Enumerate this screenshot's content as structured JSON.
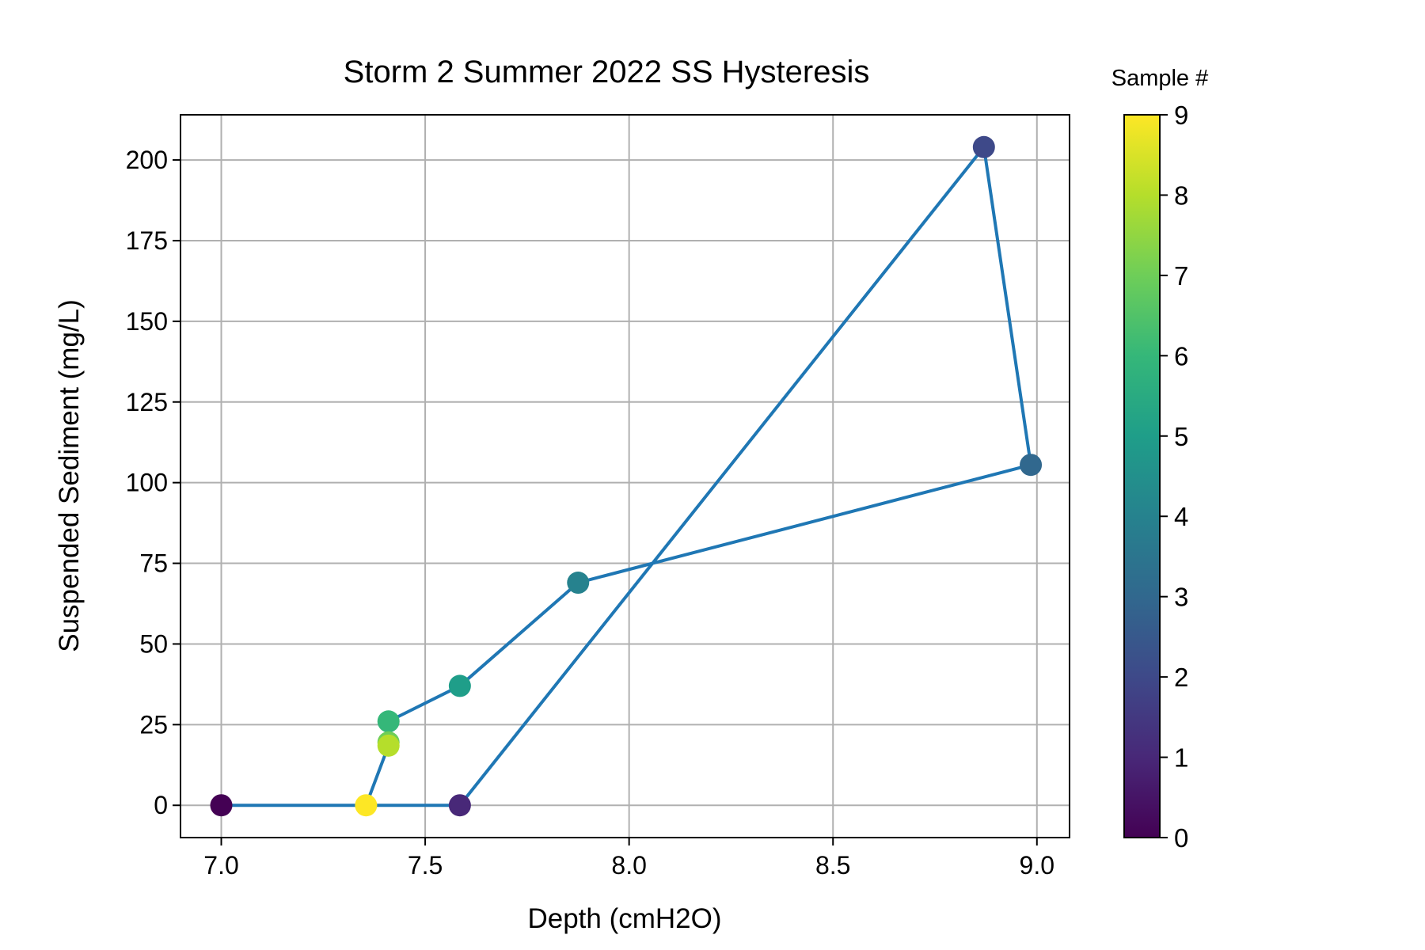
{
  "chart_data": {
    "type": "scatter",
    "title": "Storm 2 Summer 2022 SS Hysteresis",
    "xlabel": "Depth (cmH2O)",
    "ylabel": "Suspended Sediment (mg/L)",
    "xlim": [
      6.9,
      9.08
    ],
    "ylim": [
      -10,
      214
    ],
    "xticks": [
      7.0,
      7.5,
      8.0,
      8.5,
      9.0
    ],
    "xtick_labels": [
      "7.0",
      "7.5",
      "8.0",
      "8.5",
      "9.0"
    ],
    "yticks": [
      0,
      25,
      50,
      75,
      100,
      125,
      150,
      175,
      200
    ],
    "ytick_labels": [
      "0",
      "25",
      "50",
      "75",
      "100",
      "125",
      "150",
      "175",
      "200"
    ],
    "grid": true,
    "line_color": "#1f77b4",
    "colormap": "viridis",
    "colorbar": {
      "label": "Sample #",
      "range": [
        0,
        9
      ],
      "ticks": [
        0,
        1,
        2,
        3,
        4,
        5,
        6,
        7,
        8,
        9
      ],
      "tick_labels": [
        "0",
        "1",
        "2",
        "3",
        "4",
        "5",
        "6",
        "7",
        "8",
        "9"
      ]
    },
    "points": [
      {
        "sample": 0,
        "x": 7.0,
        "y": 0
      },
      {
        "sample": 1,
        "x": 7.585,
        "y": 0
      },
      {
        "sample": 2,
        "x": 8.87,
        "y": 204
      },
      {
        "sample": 3,
        "x": 8.985,
        "y": 105.5
      },
      {
        "sample": 4,
        "x": 7.875,
        "y": 69
      },
      {
        "sample": 5,
        "x": 7.585,
        "y": 37
      },
      {
        "sample": 6,
        "x": 7.41,
        "y": 26
      },
      {
        "sample": 7,
        "x": 7.41,
        "y": 19.5
      },
      {
        "sample": 8,
        "x": 7.41,
        "y": 18.5
      },
      {
        "sample": 9,
        "x": 7.355,
        "y": 0
      }
    ]
  }
}
